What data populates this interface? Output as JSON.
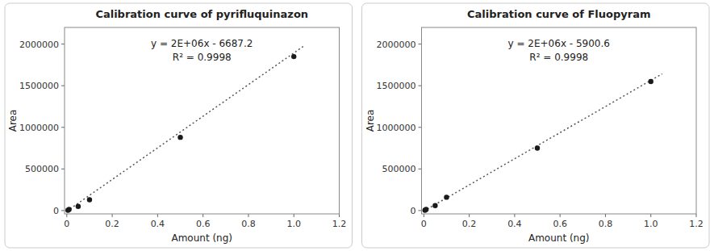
{
  "chart_data": [
    {
      "type": "scatter",
      "title": "Calibration curve of pyrifluquinazon",
      "x_label": "Amount (ng)",
      "y_label": "Area",
      "x": [
        0.005,
        0.01,
        0.05,
        0.1,
        0.5,
        1.0
      ],
      "values": [
        3313,
        13000,
        50000,
        130000,
        880000,
        1850000
      ],
      "color": "#1a1a1a",
      "fit": {
        "slope": 1900000,
        "intercept": -6687.2,
        "x": [
          0.0,
          1.05
        ],
        "color": "#555555",
        "line_style": "dotted"
      },
      "annotations": [
        {
          "text": "y = 2E+06x - 6687.2"
        },
        {
          "text": "R² = 0.9998"
        }
      ],
      "xlim": [
        -0.01,
        1.2
      ],
      "ylim": [
        -40000,
        2200000
      ],
      "xticks": [
        0,
        0.2,
        0.4,
        0.6,
        0.8,
        {
          "value": 1.0,
          "label": "1.0"
        },
        1.2
      ],
      "yticks": [
        0,
        500000,
        1000000,
        1500000,
        2000000
      ],
      "grid": false
    },
    {
      "type": "scatter",
      "title": "Calibration curve of Fluopyram",
      "x_label": "Amount (ng)",
      "y_label": "Area",
      "x": [
        0.005,
        0.01,
        0.05,
        0.1,
        0.5,
        1.0
      ],
      "values": [
        4100,
        14050,
        60000,
        160000,
        750000,
        1550000
      ],
      "color": "#1a1a1a",
      "fit": {
        "slope": 1570000,
        "intercept": -5900.6,
        "x": [
          0.0,
          1.05
        ],
        "color": "#555555",
        "line_style": "dotted"
      },
      "annotations": [
        {
          "text": "y = 2E+06x - 5900.6"
        },
        {
          "text": "R² = 0.9998"
        }
      ],
      "xlim": [
        -0.01,
        1.2
      ],
      "ylim": [
        -40000,
        2200000
      ],
      "xticks": [
        0,
        0.2,
        0.4,
        0.6,
        0.8,
        {
          "value": 1.0,
          "label": "1.0"
        },
        1.2
      ],
      "yticks": [
        0,
        500000,
        1000000,
        1500000,
        2000000
      ],
      "grid": false
    }
  ]
}
